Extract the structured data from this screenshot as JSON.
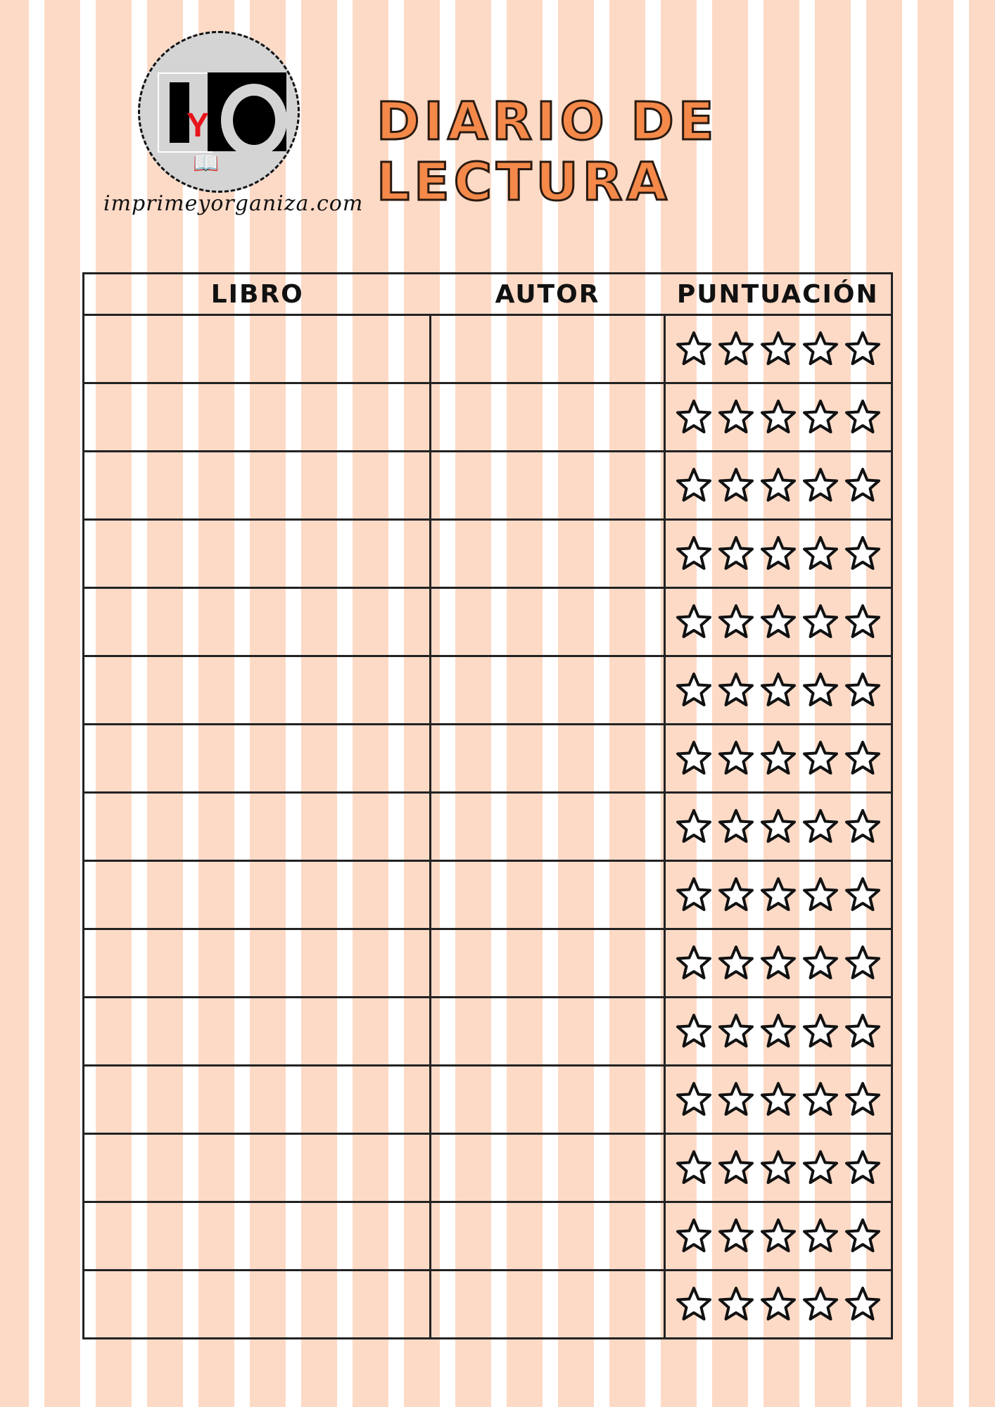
{
  "brand": {
    "logo_text": "IyO",
    "website": "imprimeyorganiza.com"
  },
  "title": "DIARIO DE LECTURA",
  "table": {
    "headers": [
      "LIBRO",
      "AUTOR",
      "PUNTUACIÓN"
    ],
    "max_rating": 5,
    "rows": [
      {
        "libro": "",
        "autor": "",
        "rating": 0
      },
      {
        "libro": "",
        "autor": "",
        "rating": 0
      },
      {
        "libro": "",
        "autor": "",
        "rating": 0
      },
      {
        "libro": "",
        "autor": "",
        "rating": 0
      },
      {
        "libro": "",
        "autor": "",
        "rating": 0
      },
      {
        "libro": "",
        "autor": "",
        "rating": 0
      },
      {
        "libro": "",
        "autor": "",
        "rating": 0
      },
      {
        "libro": "",
        "autor": "",
        "rating": 0
      },
      {
        "libro": "",
        "autor": "",
        "rating": 0
      },
      {
        "libro": "",
        "autor": "",
        "rating": 0
      },
      {
        "libro": "",
        "autor": "",
        "rating": 0
      },
      {
        "libro": "",
        "autor": "",
        "rating": 0
      },
      {
        "libro": "",
        "autor": "",
        "rating": 0
      },
      {
        "libro": "",
        "autor": "",
        "rating": 0
      },
      {
        "libro": "",
        "autor": "",
        "rating": 0
      }
    ]
  },
  "colors": {
    "stripe_peach": "#fddac6",
    "stripe_white": "#ffffff",
    "title": "#f4894a",
    "logo_red": "#e8141c"
  }
}
